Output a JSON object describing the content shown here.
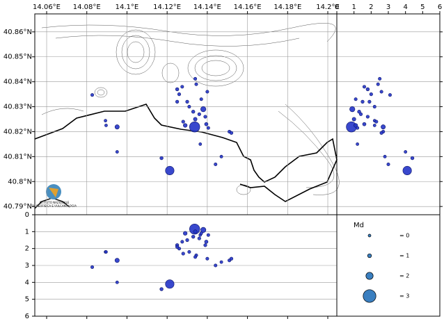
{
  "chart_data": {
    "type": "scatter",
    "color": "#2434c8",
    "xlim": [
      14.0541,
      14.2045
    ],
    "ylim": [
      40.7867,
      40.8672
    ],
    "depth_lim": [
      0,
      6
    ],
    "xticks": [
      {
        "value": 14.06,
        "label": "14.06°E"
      },
      {
        "value": 14.08,
        "label": "14.08°E"
      },
      {
        "value": 14.1,
        "label": "14.1°E"
      },
      {
        "value": 14.12,
        "label": "14.12°E"
      },
      {
        "value": 14.14,
        "label": "14.14°E"
      },
      {
        "value": 14.16,
        "label": "14.16°E"
      },
      {
        "value": 14.18,
        "label": "14.18°E"
      },
      {
        "value": 14.2,
        "label": "14.2°E"
      }
    ],
    "yticks": [
      {
        "value": 40.86,
        "label": "40.86°N"
      },
      {
        "value": 40.85,
        "label": "40.85°N"
      },
      {
        "value": 40.84,
        "label": "40.84°N"
      },
      {
        "value": 40.83,
        "label": "40.83°N"
      },
      {
        "value": 40.82,
        "label": "40.82°N"
      },
      {
        "value": 40.81,
        "label": "40.81°N"
      },
      {
        "value": 40.8,
        "label": "40.8°N"
      },
      {
        "value": 40.79,
        "label": "40.79°N"
      }
    ],
    "depth_ticks": [
      0,
      1,
      2,
      3,
      4,
      5,
      6
    ],
    "grid": true,
    "x": [
      14.0827,
      14.0893,
      14.0896,
      14.0951,
      14.0951,
      14.1172,
      14.1213,
      14.1337,
      14.1441,
      14.147,
      14.151,
      14.152,
      14.1365,
      14.125,
      14.126,
      14.1275,
      14.13,
      14.131,
      14.133,
      14.134,
      14.1345,
      14.136,
      14.137,
      14.138,
      14.139,
      14.1395,
      14.14,
      14.1405,
      14.128,
      14.129,
      14.134,
      14.125
    ],
    "y": [
      40.8347,
      40.8244,
      40.8225,
      40.8219,
      40.8119,
      40.8094,
      40.8044,
      40.8219,
      40.8069,
      40.81,
      40.82,
      40.8195,
      40.815,
      40.837,
      40.835,
      40.838,
      40.832,
      40.83,
      40.828,
      40.825,
      40.839,
      40.827,
      40.833,
      40.829,
      40.826,
      40.823,
      40.836,
      40.8215,
      40.824,
      40.8225,
      40.8412,
      40.832
    ],
    "depth": [
      3.1,
      2.2,
      2.2,
      2.7,
      4.0,
      4.4,
      4.1,
      0.85,
      3.0,
      2.8,
      2.7,
      2.6,
      1.2,
      1.8,
      2.0,
      1.6,
      1.5,
      2.2,
      1.3,
      1.0,
      2.4,
      1.4,
      1.1,
      0.9,
      1.8,
      1.6,
      2.6,
      1.2,
      2.3,
      1.1,
      2.5,
      1.9
    ],
    "sizes": [
      0.5,
      0.3,
      0.3,
      1.2,
      0.4,
      0.7,
      2.3,
      2.6,
      0.5,
      0.4,
      0.6,
      0.6,
      0.3,
      0.7,
      0.6,
      0.5,
      0.6,
      0.5,
      0.7,
      0.9,
      0.5,
      0.6,
      0.5,
      1.5,
      0.6,
      0.8,
      0.5,
      0.5,
      0.6,
      1.0,
      0.5,
      0.6
    ],
    "legend": {
      "title": "Md",
      "sizes": [
        0,
        1,
        2,
        3
      ],
      "labels": [
        "= 0",
        "= 1",
        "= 2",
        "= 3"
      ]
    },
    "logo_text": [
      "ISTITUTO NAZIONALE",
      "DI GEOFISICA E VULCANOLOGIA"
    ]
  }
}
